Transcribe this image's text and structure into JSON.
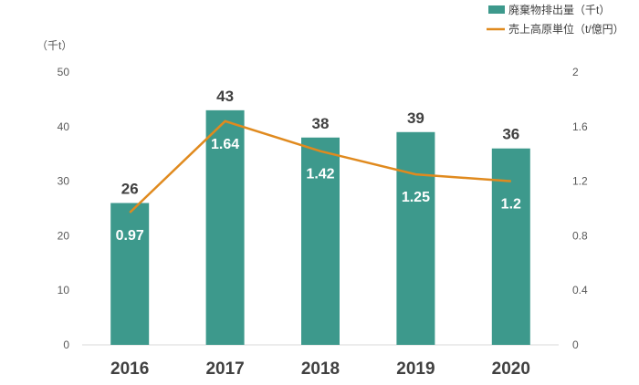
{
  "chart_data": {
    "type": "bar+line",
    "categories": [
      "2016",
      "2017",
      "2018",
      "2019",
      "2020"
    ],
    "series": [
      {
        "name": "廃棄物排出量（千t）",
        "type": "bar",
        "axis": "left",
        "values": [
          26,
          43,
          38,
          39,
          36
        ],
        "color": "#3D998C"
      },
      {
        "name": "売上高原単位（t/億円）",
        "type": "line",
        "axis": "right",
        "values": [
          0.97,
          1.64,
          1.42,
          1.25,
          1.2
        ],
        "color": "#E08A1E"
      }
    ],
    "left_axis": {
      "unit_label": "（千t）",
      "ylim": [
        0,
        50
      ],
      "ticks": [
        "0",
        "10",
        "20",
        "30",
        "40",
        "50"
      ]
    },
    "right_axis": {
      "ylim": [
        0,
        2
      ],
      "ticks": [
        "0",
        "0.4",
        "0.8",
        "1.2",
        "1.6",
        "2"
      ]
    },
    "legend_placement": "top-right",
    "grid": false
  }
}
